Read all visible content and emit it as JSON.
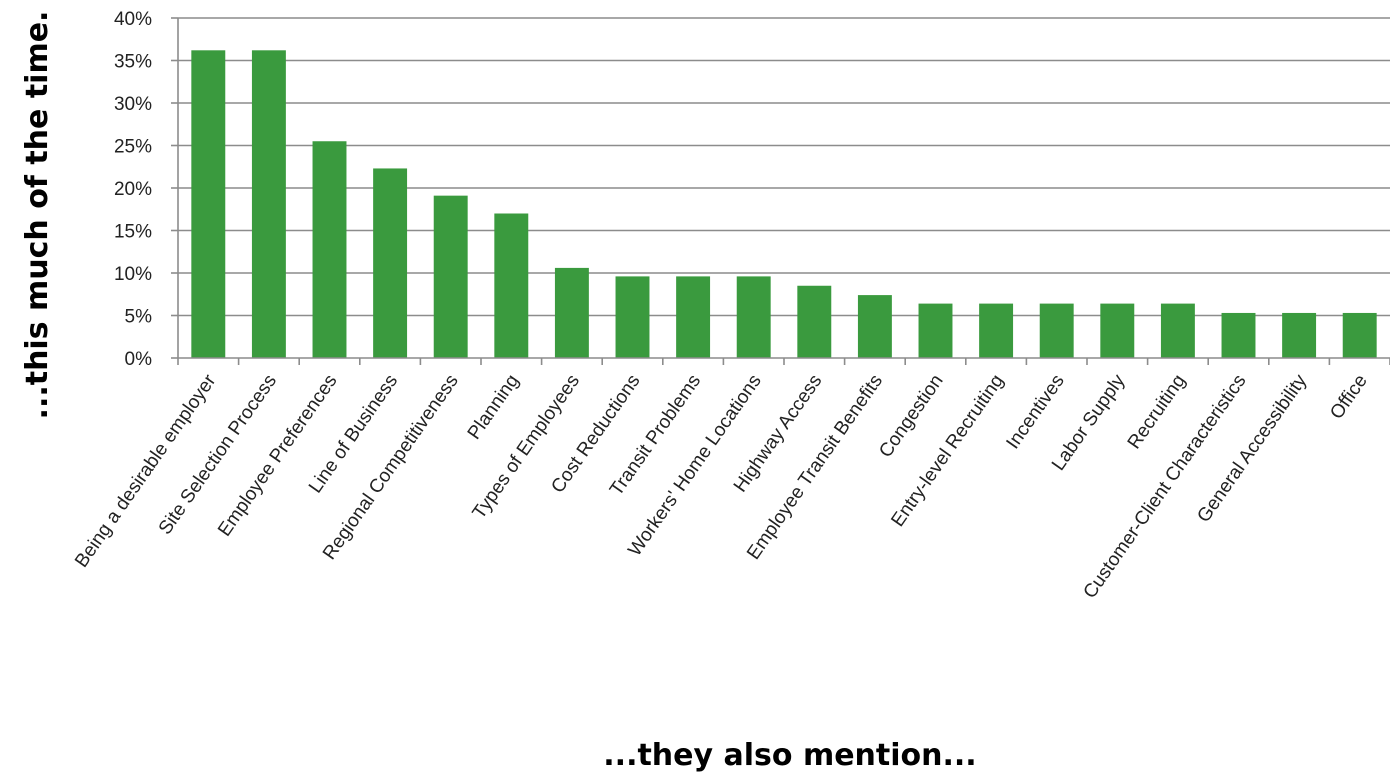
{
  "chart_data": {
    "type": "bar",
    "title": "",
    "xlabel": "...they also mention...",
    "ylabel": "...this much of the time.",
    "ylim": [
      0,
      40
    ],
    "yticks": [
      "0%",
      "5%",
      "10%",
      "15%",
      "20%",
      "25%",
      "30%",
      "35%",
      "40%"
    ],
    "grid": true,
    "bar_color": "#3a9a3e",
    "categories": [
      "Being a desirable employer",
      "Site Selection Process",
      "Employee Preferences",
      "Line of Business",
      "Regional Competitiveness",
      "Planning",
      "Types of Employees",
      "Cost Reductions",
      "Transit Problems",
      "Workers' Home Locations",
      "Highway Access",
      "Employee Transit Benefits",
      "Congestion",
      "Entry-level Recruiting",
      "Incentives",
      "Labor Supply",
      "Recruiting",
      "Customer-Client Characteristics",
      "General Accessibility",
      "Office"
    ],
    "values": [
      36.2,
      36.2,
      25.5,
      22.3,
      19.1,
      17.0,
      10.6,
      9.6,
      9.6,
      9.6,
      8.5,
      7.4,
      6.4,
      6.4,
      6.4,
      6.4,
      6.4,
      5.3,
      5.3,
      5.3
    ]
  }
}
